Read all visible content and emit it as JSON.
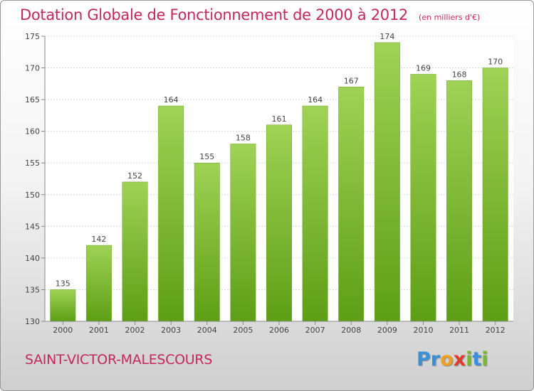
{
  "header": {
    "title": "Dotation Globale de Fonctionnement de 2000 à 2012",
    "subtitle": "(en milliers d'€)"
  },
  "footer": {
    "commune": "SAINT-VICTOR-MALESCOURS",
    "logo_letters": [
      {
        "char": "P",
        "color": "#3a8fd6"
      },
      {
        "char": "r",
        "color": "#3a8fd6"
      },
      {
        "char": "o",
        "color": "#f0a020"
      },
      {
        "char": "x",
        "color": "#e03a2a"
      },
      {
        "char": "i",
        "color": "#7ab82e"
      },
      {
        "char": "t",
        "color": "#3a8fd6"
      },
      {
        "char": "i",
        "color": "#7ab82e"
      }
    ]
  },
  "colors": {
    "bar_light": "#9fd255",
    "bar_dark": "#5e9e16",
    "title": "#c2285c",
    "grid": "#d8d8d8"
  },
  "chart_data": {
    "type": "bar",
    "categories": [
      "2000",
      "2001",
      "2002",
      "2003",
      "2004",
      "2005",
      "2006",
      "2007",
      "2008",
      "2009",
      "2010",
      "2011",
      "2012"
    ],
    "values": [
      135,
      142,
      152,
      164,
      155,
      158,
      161,
      164,
      167,
      174,
      169,
      168,
      170
    ],
    "data_labels": [
      "135",
      "142",
      "152",
      "164",
      "155",
      "158",
      "161",
      "164",
      "167",
      "174",
      "169",
      "168",
      "170"
    ],
    "title": "Dotation Globale de Fonctionnement de 2000 à 2012",
    "xlabel": "",
    "ylabel": "",
    "ylim": [
      130,
      175
    ],
    "yticks": [
      130,
      135,
      140,
      145,
      150,
      155,
      160,
      165,
      170,
      175
    ],
    "ytick_labels": [
      "130",
      "135",
      "140",
      "145",
      "150",
      "155",
      "160",
      "165",
      "170",
      "175"
    ],
    "grid": true,
    "legend": "none"
  }
}
